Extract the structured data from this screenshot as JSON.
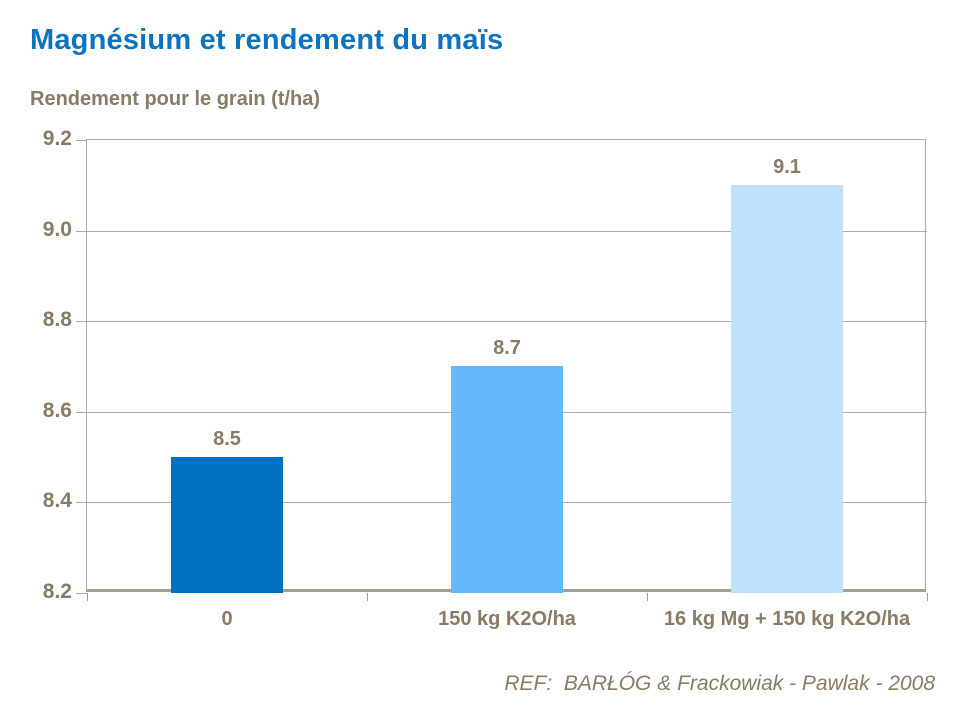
{
  "header": {
    "title": "Magnésium et rendement du maïs",
    "subtitle": "Rendement pour le grain (t/ha)"
  },
  "footer": {
    "reference": "REF:  BARŁÓG & Frackowiak - Pawlak - 2008"
  },
  "colors": {
    "background": "#ffffff",
    "accent": "#0d73be",
    "text_brown": "#8a7b64",
    "grid": "#b3a99c",
    "axis": "#a89e8f"
  },
  "chart_data": {
    "type": "bar",
    "title": "Magnésium et rendement du maïs",
    "ylabel": "Rendement pour le grain (t/ha)",
    "xlabel": "",
    "categories": [
      "0",
      "150 kg K2O/ha",
      "16 kg Mg + 150 kg K2O/ha"
    ],
    "values": [
      8.5,
      8.7,
      9.1
    ],
    "value_labels": [
      "8.5",
      "8.7",
      "9.1"
    ],
    "bar_colors": [
      "#0070c0",
      "#63b9fc",
      "#bde0fc"
    ],
    "ylim": [
      8.2,
      9.2
    ],
    "ytick_step": 0.2,
    "ytick_labels": [
      "9.2",
      "9.0",
      "8.8",
      "8.6",
      "8.4",
      "8.2"
    ],
    "grid": "on",
    "legend": "none"
  }
}
